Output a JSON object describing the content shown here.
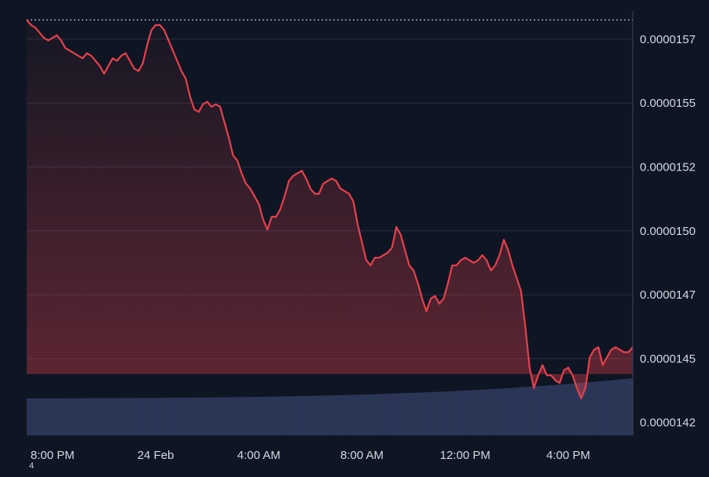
{
  "chart_data": {
    "type": "line",
    "series": [
      {
        "x": [
          "2025-02-23T19:00",
          "2025-02-23T19:10",
          "2025-02-23T19:20",
          "2025-02-23T19:30",
          "2025-02-23T19:40",
          "2025-02-23T19:50",
          "2025-02-23T20:00",
          "2025-02-23T20:10",
          "2025-02-23T20:20",
          "2025-02-23T20:30",
          "2025-02-23T20:40",
          "2025-02-23T20:50",
          "2025-02-23T21:00",
          "2025-02-23T21:10",
          "2025-02-23T21:20",
          "2025-02-23T21:30",
          "2025-02-23T21:40",
          "2025-02-23T21:50",
          "2025-02-23T22:00",
          "2025-02-23T22:10",
          "2025-02-23T22:20",
          "2025-02-23T22:30",
          "2025-02-23T22:40",
          "2025-02-23T22:50",
          "2025-02-23T23:00",
          "2025-02-23T23:10",
          "2025-02-23T23:20",
          "2025-02-23T23:30",
          "2025-02-23T23:40",
          "2025-02-23T23:50",
          "2025-02-24T00:00",
          "2025-02-24T00:10",
          "2025-02-24T00:20",
          "2025-02-24T00:30",
          "2025-02-24T00:40",
          "2025-02-24T00:50",
          "2025-02-24T01:00",
          "2025-02-24T01:10",
          "2025-02-24T01:20",
          "2025-02-24T01:30",
          "2025-02-24T01:40",
          "2025-02-24T01:50",
          "2025-02-24T02:00",
          "2025-02-24T02:10",
          "2025-02-24T02:20",
          "2025-02-24T02:30",
          "2025-02-24T02:40",
          "2025-02-24T02:50",
          "2025-02-24T03:00",
          "2025-02-24T03:10",
          "2025-02-24T03:20",
          "2025-02-24T03:30",
          "2025-02-24T03:40",
          "2025-02-24T03:50",
          "2025-02-24T04:00",
          "2025-02-24T04:10",
          "2025-02-24T04:20",
          "2025-02-24T04:30",
          "2025-02-24T04:40",
          "2025-02-24T04:50",
          "2025-02-24T05:00",
          "2025-02-24T05:10",
          "2025-02-24T05:20",
          "2025-02-24T05:30",
          "2025-02-24T05:40",
          "2025-02-24T05:50",
          "2025-02-24T06:00",
          "2025-02-24T06:10",
          "2025-02-24T06:20",
          "2025-02-24T06:30",
          "2025-02-24T06:40",
          "2025-02-24T06:50",
          "2025-02-24T07:00",
          "2025-02-24T07:10",
          "2025-02-24T07:20",
          "2025-02-24T07:30",
          "2025-02-24T07:40",
          "2025-02-24T07:50",
          "2025-02-24T08:00",
          "2025-02-24T08:10",
          "2025-02-24T08:20",
          "2025-02-24T08:30",
          "2025-02-24T08:40",
          "2025-02-24T08:50",
          "2025-02-24T09:00",
          "2025-02-24T09:10",
          "2025-02-24T09:20",
          "2025-02-24T09:30",
          "2025-02-24T09:40",
          "2025-02-24T09:50",
          "2025-02-24T10:00",
          "2025-02-24T10:10",
          "2025-02-24T10:20",
          "2025-02-24T10:30",
          "2025-02-24T10:40",
          "2025-02-24T10:50",
          "2025-02-24T11:00",
          "2025-02-24T11:10",
          "2025-02-24T11:20",
          "2025-02-24T11:30",
          "2025-02-24T11:40",
          "2025-02-24T11:50",
          "2025-02-24T12:00",
          "2025-02-24T12:10",
          "2025-02-24T12:20",
          "2025-02-24T12:30",
          "2025-02-24T12:40",
          "2025-02-24T12:50",
          "2025-02-24T13:00",
          "2025-02-24T13:10",
          "2025-02-24T13:20",
          "2025-02-24T13:30",
          "2025-02-24T13:40",
          "2025-02-24T13:50",
          "2025-02-24T14:00",
          "2025-02-24T14:10",
          "2025-02-24T14:20",
          "2025-02-24T14:30",
          "2025-02-24T14:40",
          "2025-02-24T14:50",
          "2025-02-24T15:00",
          "2025-02-24T15:10",
          "2025-02-24T15:20",
          "2025-02-24T15:30",
          "2025-02-24T15:40",
          "2025-02-24T15:50",
          "2025-02-24T16:00",
          "2025-02-24T16:10",
          "2025-02-24T16:20",
          "2025-02-24T16:30",
          "2025-02-24T16:40",
          "2025-02-24T16:50",
          "2025-02-24T17:00",
          "2025-02-24T17:10",
          "2025-02-24T17:20",
          "2025-02-24T17:30",
          "2025-02-24T17:40",
          "2025-02-24T17:50",
          "2025-02-24T18:00",
          "2025-02-24T18:10",
          "2025-02-24T18:20",
          "2025-02-24T18:30"
        ],
        "values": [
          1.58e-05,
          1.578e-05,
          1.577e-05,
          1.575e-05,
          1.573e-05,
          1.572e-05,
          1.573e-05,
          1.574e-05,
          1.572e-05,
          1.569e-05,
          1.568e-05,
          1.567e-05,
          1.566e-05,
          1.565e-05,
          1.567e-05,
          1.566e-05,
          1.564e-05,
          1.562e-05,
          1.559e-05,
          1.562e-05,
          1.565e-05,
          1.564e-05,
          1.566e-05,
          1.567e-05,
          1.564e-05,
          1.561e-05,
          1.56e-05,
          1.563e-05,
          1.57e-05,
          1.576e-05,
          1.578e-05,
          1.578e-05,
          1.576e-05,
          1.572e-05,
          1.568e-05,
          1.564e-05,
          1.56e-05,
          1.557e-05,
          1.55e-05,
          1.545e-05,
          1.544e-05,
          1.547e-05,
          1.548e-05,
          1.546e-05,
          1.547e-05,
          1.546e-05,
          1.54e-05,
          1.534e-05,
          1.527e-05,
          1.525e-05,
          1.52e-05,
          1.516e-05,
          1.514e-05,
          1.511e-05,
          1.508e-05,
          1.502e-05,
          1.498e-05,
          1.503e-05,
          1.503e-05,
          1.506e-05,
          1.511e-05,
          1.517e-05,
          1.519e-05,
          1.52e-05,
          1.521e-05,
          1.518e-05,
          1.514e-05,
          1.512e-05,
          1.512e-05,
          1.516e-05,
          1.517e-05,
          1.518e-05,
          1.517e-05,
          1.514e-05,
          1.513e-05,
          1.512e-05,
          1.509e-05,
          1.5e-05,
          1.493e-05,
          1.486e-05,
          1.484e-05,
          1.487e-05,
          1.487e-05,
          1.488e-05,
          1.489e-05,
          1.491e-05,
          1.499e-05,
          1.496e-05,
          1.49e-05,
          1.484e-05,
          1.482e-05,
          1.477e-05,
          1.471e-05,
          1.466e-05,
          1.471e-05,
          1.472e-05,
          1.469e-05,
          1.471e-05,
          1.477e-05,
          1.484e-05,
          1.484e-05,
          1.486e-05,
          1.487e-05,
          1.486e-05,
          1.485e-05,
          1.486e-05,
          1.488e-05,
          1.486e-05,
          1.482e-05,
          1.484e-05,
          1.488e-05,
          1.494e-05,
          1.49e-05,
          1.484e-05,
          1.479e-05,
          1.474e-05,
          1.46e-05,
          1.444e-05,
          1.436e-05,
          1.441e-05,
          1.445e-05,
          1.441e-05,
          1.441e-05,
          1.439e-05,
          1.438e-05,
          1.443e-05,
          1.444e-05,
          1.441e-05,
          1.436e-05,
          1.432e-05,
          1.436e-05,
          1.448e-05,
          1.451e-05,
          1.452e-05,
          1.445e-05,
          1.448e-05,
          1.451e-05,
          1.452e-05,
          1.451e-05,
          1.45e-05,
          1.45e-05,
          1.452e-05
        ],
        "color": "#e8404c"
      }
    ],
    "volume_color": "#2b3657",
    "ylim": [
      1.4175e-05,
      1.5835e-05
    ],
    "y_ticks": [
      "0.0000157",
      "0.0000155",
      "0.0000152",
      "0.0000150",
      "0.0000147",
      "0.0000145",
      "0.0000142"
    ],
    "y_tick_values": [
      1.5725e-05,
      1.5475e-05,
      1.5225e-05,
      1.4975e-05,
      1.4725e-05,
      1.4475e-05,
      1.4225e-05
    ],
    "x_ticks": [
      "8:00 PM",
      "24 Feb",
      "4:00 AM",
      "8:00 AM",
      "12:00 PM",
      "4:00 PM"
    ],
    "x_tick_values": [
      "2025-02-23T20:00",
      "2025-02-24T00:00",
      "2025-02-24T04:00",
      "2025-02-24T08:00",
      "2025-02-24T12:00",
      "2025-02-24T16:00"
    ],
    "reference_line": 1.58e-05,
    "grid": true,
    "background": "#0f1623",
    "corner_text": "4"
  }
}
